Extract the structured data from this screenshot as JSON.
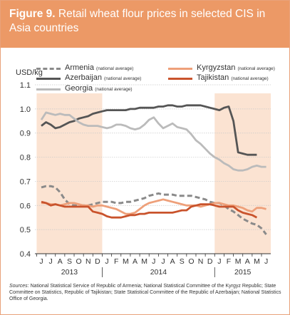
{
  "figure": {
    "number": "Figure 9.",
    "title": "Retail wheat flour prices in selected CIS in Asia countries"
  },
  "chart_data": {
    "type": "line",
    "ylabel": "USD/kg",
    "ylim": [
      0.4,
      1.1
    ],
    "yticks": [
      "0.4",
      "0.5",
      "0.6",
      "0.7",
      "0.8",
      "0.9",
      "1.0",
      "1.1"
    ],
    "yticks_values": [
      0.4,
      0.5,
      0.6,
      0.7,
      0.8,
      0.9,
      1.0,
      1.1
    ],
    "month_labels": [
      "J",
      "J",
      "A",
      "S",
      "O",
      "N",
      "D",
      "J",
      "F",
      "M",
      "A",
      "M",
      "J",
      "J",
      "A",
      "S",
      "O",
      "N",
      "D",
      "J",
      "F",
      "M",
      "A",
      "M",
      "J"
    ],
    "year_labels": [
      {
        "label": "2013",
        "from": 0,
        "to": 6
      },
      {
        "label": "2014",
        "from": 7,
        "to": 18
      },
      {
        "label": "2015",
        "from": 19,
        "to": 24
      }
    ],
    "shaded_ranges": [
      [
        0,
        6
      ],
      [
        19,
        24
      ]
    ],
    "shade_color": "#fbe3d2",
    "grid": "horizontal",
    "series": [
      {
        "name": "Armenia",
        "note": "(national average)",
        "color": "#8a8a8a",
        "style": "dashed",
        "x": [
          0,
          0.5,
          1,
          1.5,
          2,
          2.5,
          3,
          3.5,
          4,
          4.5,
          5,
          5.5,
          6,
          6.5,
          7,
          7.5,
          8,
          8.5,
          9,
          9.5,
          10,
          10.5,
          11,
          11.5,
          12,
          12.5,
          13,
          13.5,
          14,
          14.5,
          15,
          15.5,
          16,
          16.5,
          17,
          17.5,
          18,
          18.5,
          19,
          19.5,
          20,
          20.5,
          21,
          21.5,
          22,
          22.5,
          23,
          23.5,
          24
        ],
        "values": [
          0.675,
          0.68,
          0.68,
          0.675,
          0.655,
          0.625,
          0.605,
          0.6,
          0.6,
          0.6,
          0.6,
          0.605,
          0.61,
          0.615,
          0.615,
          0.615,
          0.61,
          0.61,
          0.615,
          0.615,
          0.62,
          0.625,
          0.63,
          0.64,
          0.645,
          0.65,
          0.645,
          0.645,
          0.645,
          0.64,
          0.64,
          0.64,
          0.64,
          0.635,
          0.63,
          0.625,
          0.615,
          0.61,
          0.61,
          0.6,
          0.585,
          0.575,
          0.56,
          0.545,
          0.535,
          0.525,
          0.52,
          0.505,
          0.48
        ]
      },
      {
        "name": "Azerbaijan",
        "note": "(national average)",
        "color": "#555555",
        "style": "solid",
        "x": [
          0,
          0.5,
          1,
          1.5,
          2,
          2.5,
          3,
          3.5,
          4,
          4.5,
          5,
          5.5,
          6,
          6.5,
          7,
          7.5,
          8,
          8.5,
          9,
          9.5,
          10,
          10.5,
          11,
          11.5,
          12,
          12.5,
          13,
          13.5,
          14,
          14.5,
          15,
          15.5,
          16,
          16.5,
          17,
          17.5,
          18,
          18.5,
          19,
          19.5,
          20,
          20.5,
          21,
          21.5,
          22,
          22.5,
          23
        ],
        "values": [
          0.93,
          0.945,
          0.935,
          0.92,
          0.925,
          0.935,
          0.945,
          0.95,
          0.96,
          0.965,
          0.97,
          0.98,
          0.985,
          0.99,
          0.995,
          0.995,
          0.995,
          0.995,
          0.995,
          1.0,
          1.0,
          1.005,
          1.005,
          1.005,
          1.005,
          1.01,
          1.01,
          1.015,
          1.015,
          1.01,
          1.01,
          1.015,
          1.015,
          1.015,
          1.015,
          1.01,
          1.005,
          1.0,
          0.995,
          1.005,
          1.01,
          0.95,
          0.82,
          0.815,
          0.81,
          0.81,
          0.81
        ]
      },
      {
        "name": "Georgia",
        "note": "(national average)",
        "color": "#bbbbbb",
        "style": "solid",
        "x": [
          0,
          0.5,
          1,
          1.5,
          2,
          2.5,
          3,
          3.5,
          4,
          4.5,
          5,
          5.5,
          6,
          6.5,
          7,
          7.5,
          8,
          8.5,
          9,
          9.5,
          10,
          10.5,
          11,
          11.5,
          12,
          12.5,
          13,
          13.5,
          14,
          14.5,
          15,
          15.5,
          16,
          16.5,
          17,
          17.5,
          18,
          18.5,
          19,
          19.5,
          20,
          20.5,
          21,
          21.5,
          22,
          22.5,
          23,
          23.5,
          24
        ],
        "values": [
          0.955,
          0.985,
          0.98,
          0.975,
          0.98,
          0.975,
          0.975,
          0.96,
          0.945,
          0.935,
          0.93,
          0.93,
          0.93,
          0.925,
          0.92,
          0.925,
          0.935,
          0.935,
          0.93,
          0.92,
          0.915,
          0.92,
          0.935,
          0.955,
          0.965,
          0.94,
          0.92,
          0.93,
          0.94,
          0.925,
          0.92,
          0.915,
          0.895,
          0.87,
          0.855,
          0.835,
          0.815,
          0.8,
          0.79,
          0.775,
          0.765,
          0.75,
          0.745,
          0.745,
          0.75,
          0.76,
          0.765,
          0.76,
          0.76
        ]
      },
      {
        "name": "Kyrgyzstan",
        "note": "(national average)",
        "color": "#eea07a",
        "style": "solid",
        "x": [
          0,
          0.5,
          1,
          1.5,
          2,
          2.5,
          3,
          3.5,
          4,
          4.5,
          5,
          5.5,
          6,
          6.5,
          7,
          7.5,
          8,
          8.5,
          9,
          9.5,
          10,
          10.5,
          11,
          11.5,
          12,
          12.5,
          13,
          13.5,
          14,
          14.5,
          15,
          15.5,
          16,
          16.5,
          17,
          17.5,
          18,
          18.5,
          19,
          19.5,
          20,
          20.5,
          21,
          21.5,
          22,
          22.5,
          23,
          23.5,
          24
        ],
        "values": [
          0.61,
          0.61,
          0.605,
          0.605,
          0.6,
          0.605,
          0.61,
          0.61,
          0.605,
          0.6,
          0.6,
          0.595,
          0.6,
          0.6,
          0.595,
          0.59,
          0.585,
          0.575,
          0.565,
          0.565,
          0.57,
          0.585,
          0.6,
          0.61,
          0.615,
          0.62,
          0.625,
          0.62,
          0.615,
          0.61,
          0.605,
          0.6,
          0.6,
          0.6,
          0.595,
          0.6,
          0.605,
          0.61,
          0.61,
          0.605,
          0.6,
          0.6,
          0.595,
          0.59,
          0.58,
          0.575,
          0.59,
          0.59,
          0.585
        ]
      },
      {
        "name": "Tajikistan",
        "note": "(national average)",
        "color": "#c9532c",
        "style": "solid",
        "x": [
          0,
          0.5,
          1,
          1.5,
          2,
          2.5,
          3,
          3.5,
          4,
          4.5,
          5,
          5.5,
          6,
          6.5,
          7,
          7.5,
          8,
          8.5,
          9,
          9.5,
          10,
          10.5,
          11,
          11.5,
          12,
          12.5,
          13,
          13.5,
          14,
          14.5,
          15,
          15.5,
          16,
          16.5,
          17,
          17.5,
          18,
          18.5,
          19,
          19.5,
          20,
          20.5,
          21,
          21.5,
          22,
          22.5,
          23
        ],
        "values": [
          0.615,
          0.61,
          0.6,
          0.605,
          0.6,
          0.595,
          0.595,
          0.595,
          0.595,
          0.595,
          0.595,
          0.575,
          0.57,
          0.565,
          0.555,
          0.55,
          0.55,
          0.55,
          0.555,
          0.56,
          0.56,
          0.565,
          0.565,
          0.57,
          0.57,
          0.57,
          0.57,
          0.57,
          0.57,
          0.575,
          0.58,
          0.58,
          0.595,
          0.6,
          0.605,
          0.605,
          0.605,
          0.6,
          0.595,
          0.595,
          0.595,
          0.595,
          0.58,
          0.57,
          0.565,
          0.56,
          0.55
        ]
      }
    ]
  },
  "sources": {
    "label": "Sources:",
    "text": "National Statistical Service of Republic of Armenia; National Statistical Committee of the Kyrgyz Republic; State Committee on Statistics, Republic of Tajikistan; State Statistical Committee of the Republic of Azerbaijan; National Statistics Office of Georgia."
  }
}
